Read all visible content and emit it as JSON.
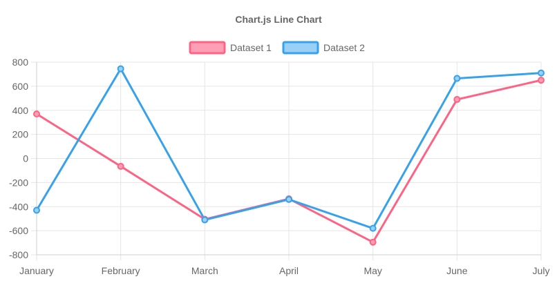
{
  "chart_data": {
    "type": "line",
    "title": "Chart.js Line Chart",
    "categories": [
      "January",
      "February",
      "March",
      "April",
      "May",
      "June",
      "July"
    ],
    "ylim": [
      -800,
      800
    ],
    "yticks": [
      800,
      600,
      400,
      200,
      0,
      -200,
      -400,
      -600,
      -800
    ],
    "grid": true,
    "legend_position": "top",
    "series": [
      {
        "name": "Dataset 1",
        "values": [
          370,
          -65,
          -505,
          -335,
          -695,
          490,
          650
        ],
        "color": "#ff6384",
        "fill": "#ff9fb5"
      },
      {
        "name": "Dataset 2",
        "values": [
          -430,
          745,
          -510,
          -340,
          -580,
          665,
          710
        ],
        "color": "#36a2eb",
        "fill": "#9ad0f5"
      }
    ]
  }
}
